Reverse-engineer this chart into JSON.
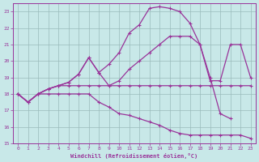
{
  "xlabel": "Windchill (Refroidissement éolien,°C)",
  "xlim": [
    -0.5,
    23.5
  ],
  "ylim": [
    15,
    23.5
  ],
  "xticks": [
    0,
    1,
    2,
    3,
    4,
    5,
    6,
    7,
    8,
    9,
    10,
    11,
    12,
    13,
    14,
    15,
    16,
    17,
    18,
    19,
    20,
    21,
    22,
    23
  ],
  "yticks": [
    15,
    16,
    17,
    18,
    19,
    20,
    21,
    22,
    23
  ],
  "bg_color": "#c8e8e8",
  "line_color": "#993399",
  "grid_color": "#99bbbb",
  "line1_x": [
    0,
    1,
    2,
    3,
    4,
    5,
    6,
    7,
    8,
    9,
    10,
    11,
    12,
    13,
    14,
    15,
    16,
    17,
    18,
    19,
    20,
    21,
    22,
    23
  ],
  "line1_y": [
    18,
    17.5,
    18,
    18.3,
    18.5,
    18.7,
    19.2,
    20.2,
    19.3,
    19.8,
    20.5,
    21.7,
    22.2,
    23.2,
    23.3,
    23.2,
    23.0,
    22.3,
    21.0,
    18.8,
    18.8,
    21.0,
    21.0,
    19.0
  ],
  "line2_x": [
    0,
    1,
    2,
    3,
    4,
    5,
    6,
    7,
    8,
    9,
    10,
    11,
    12,
    13,
    14,
    15,
    16,
    17,
    18,
    19,
    20,
    21,
    22,
    23
  ],
  "line2_y": [
    18,
    17.5,
    18,
    18.3,
    18.5,
    18.5,
    18.5,
    18.5,
    18.5,
    18.5,
    18.5,
    18.5,
    18.5,
    18.5,
    18.5,
    18.5,
    18.5,
    18.5,
    18.5,
    18.5,
    18.5,
    18.5,
    18.5,
    18.5
  ],
  "line3_x": [
    0,
    1,
    2,
    3,
    4,
    5,
    6,
    7,
    8,
    9,
    10,
    11,
    12,
    13,
    14,
    15,
    16,
    17,
    18,
    19,
    20,
    21
  ],
  "line3_y": [
    18,
    17.5,
    18,
    18.3,
    18.5,
    18.7,
    19.2,
    20.2,
    19.3,
    18.5,
    18.8,
    19.5,
    20.0,
    20.5,
    21.0,
    21.5,
    21.5,
    21.5,
    21.0,
    19.0,
    16.8,
    16.5
  ],
  "line4_x": [
    0,
    1,
    2,
    3,
    4,
    5,
    6,
    7,
    8,
    9,
    10,
    11,
    12,
    13,
    14,
    15,
    16,
    17,
    18,
    19,
    20,
    21,
    22,
    23
  ],
  "line4_y": [
    18,
    17.5,
    18,
    18.0,
    18.0,
    18.0,
    18.0,
    18.0,
    17.5,
    17.2,
    16.8,
    16.7,
    16.5,
    16.3,
    16.1,
    15.8,
    15.6,
    15.5,
    15.5,
    15.5,
    15.5,
    15.5,
    15.5,
    15.3
  ]
}
